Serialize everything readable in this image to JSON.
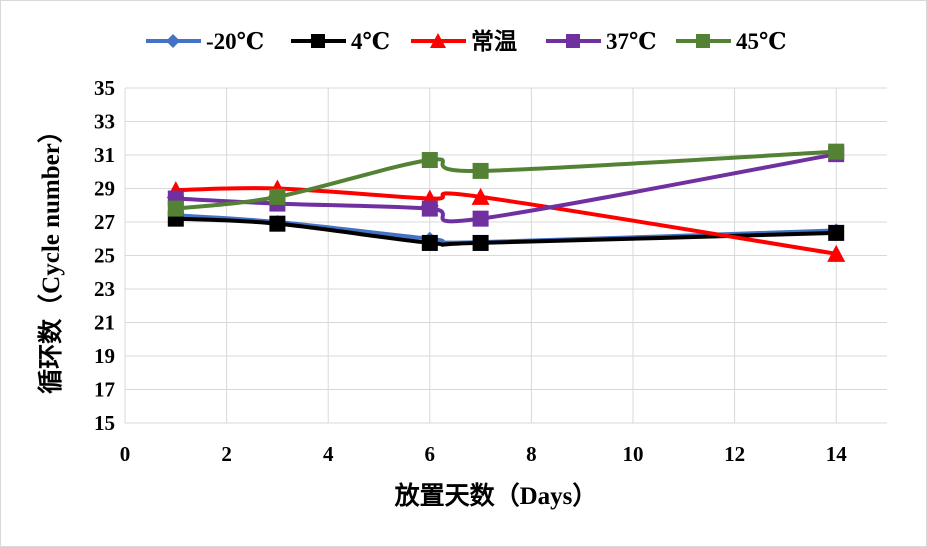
{
  "chart_data": {
    "type": "line",
    "xlabel": "放置天数（Days）",
    "ylabel": "循环数（Cycle number）",
    "xlim": [
      0,
      15
    ],
    "ylim": [
      15,
      35
    ],
    "xticks": [
      0,
      2,
      4,
      6,
      8,
      10,
      12,
      14
    ],
    "yticks": [
      15,
      17,
      19,
      21,
      23,
      25,
      27,
      29,
      31,
      33,
      35
    ],
    "grid": true,
    "legend": "top",
    "x": [
      1,
      3,
      6,
      7,
      14
    ],
    "series": [
      {
        "name": "-20℃",
        "color": "#4472c4",
        "marker": "diamond",
        "values": [
          27.4,
          27.0,
          26.0,
          25.8,
          26.5
        ]
      },
      {
        "name": "4℃",
        "color": "#000000",
        "marker": "square",
        "values": [
          27.2,
          26.9,
          25.75,
          25.75,
          26.35
        ]
      },
      {
        "name": "常温",
        "color": "#ff0000",
        "marker": "triangle",
        "values": [
          28.9,
          29.0,
          28.4,
          28.5,
          25.1
        ]
      },
      {
        "name": "37℃",
        "color": "#7030a0",
        "marker": "square",
        "values": [
          28.4,
          28.1,
          27.8,
          27.2,
          31.05
        ]
      },
      {
        "name": "45℃",
        "color": "#548235",
        "marker": "square",
        "values": [
          27.8,
          28.5,
          30.7,
          30.05,
          31.2
        ]
      }
    ]
  }
}
